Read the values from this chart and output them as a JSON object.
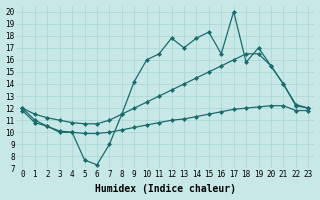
{
  "xlabel": "Humidex (Indice chaleur)",
  "background_color": "#c8e8e8",
  "line_color": "#1a6b6b",
  "x_data": [
    0,
    1,
    2,
    3,
    4,
    5,
    6,
    7,
    8,
    9,
    10,
    11,
    12,
    13,
    14,
    15,
    16,
    17,
    18,
    19,
    20,
    21,
    22,
    23
  ],
  "y_main": [
    12,
    11,
    10.5,
    10,
    10,
    7.7,
    7.3,
    9,
    11.5,
    14.2,
    16,
    16.5,
    17.8,
    17,
    17.8,
    18.3,
    16.5,
    20,
    15.8,
    17,
    15.5,
    14,
    12.2,
    12
  ],
  "y_upper": [
    12,
    11.5,
    11.2,
    11,
    10.8,
    10.7,
    10.7,
    11,
    11.5,
    12.0,
    12.5,
    13.0,
    13.5,
    14.0,
    14.5,
    15.0,
    15.5,
    16.0,
    16.5,
    16.5,
    15.5,
    14.0,
    12.3,
    12.0
  ],
  "y_lower": [
    11.8,
    10.8,
    10.5,
    10.1,
    10.0,
    9.9,
    9.9,
    10.0,
    10.2,
    10.4,
    10.6,
    10.8,
    11.0,
    11.1,
    11.3,
    11.5,
    11.7,
    11.9,
    12.0,
    12.1,
    12.2,
    12.2,
    11.8,
    11.8
  ],
  "xlim": [
    -0.5,
    23.5
  ],
  "ylim": [
    7,
    20.5
  ],
  "yticks": [
    7,
    8,
    9,
    10,
    11,
    12,
    13,
    14,
    15,
    16,
    17,
    18,
    19,
    20
  ],
  "xticks": [
    0,
    1,
    2,
    3,
    4,
    5,
    6,
    7,
    8,
    9,
    10,
    11,
    12,
    13,
    14,
    15,
    16,
    17,
    18,
    19,
    20,
    21,
    22,
    23
  ],
  "grid_color": "#a8d4d4",
  "marker": "D",
  "markersize": 2.0,
  "linewidth": 0.9,
  "fontsize_label": 7,
  "fontsize_tick": 5.5
}
